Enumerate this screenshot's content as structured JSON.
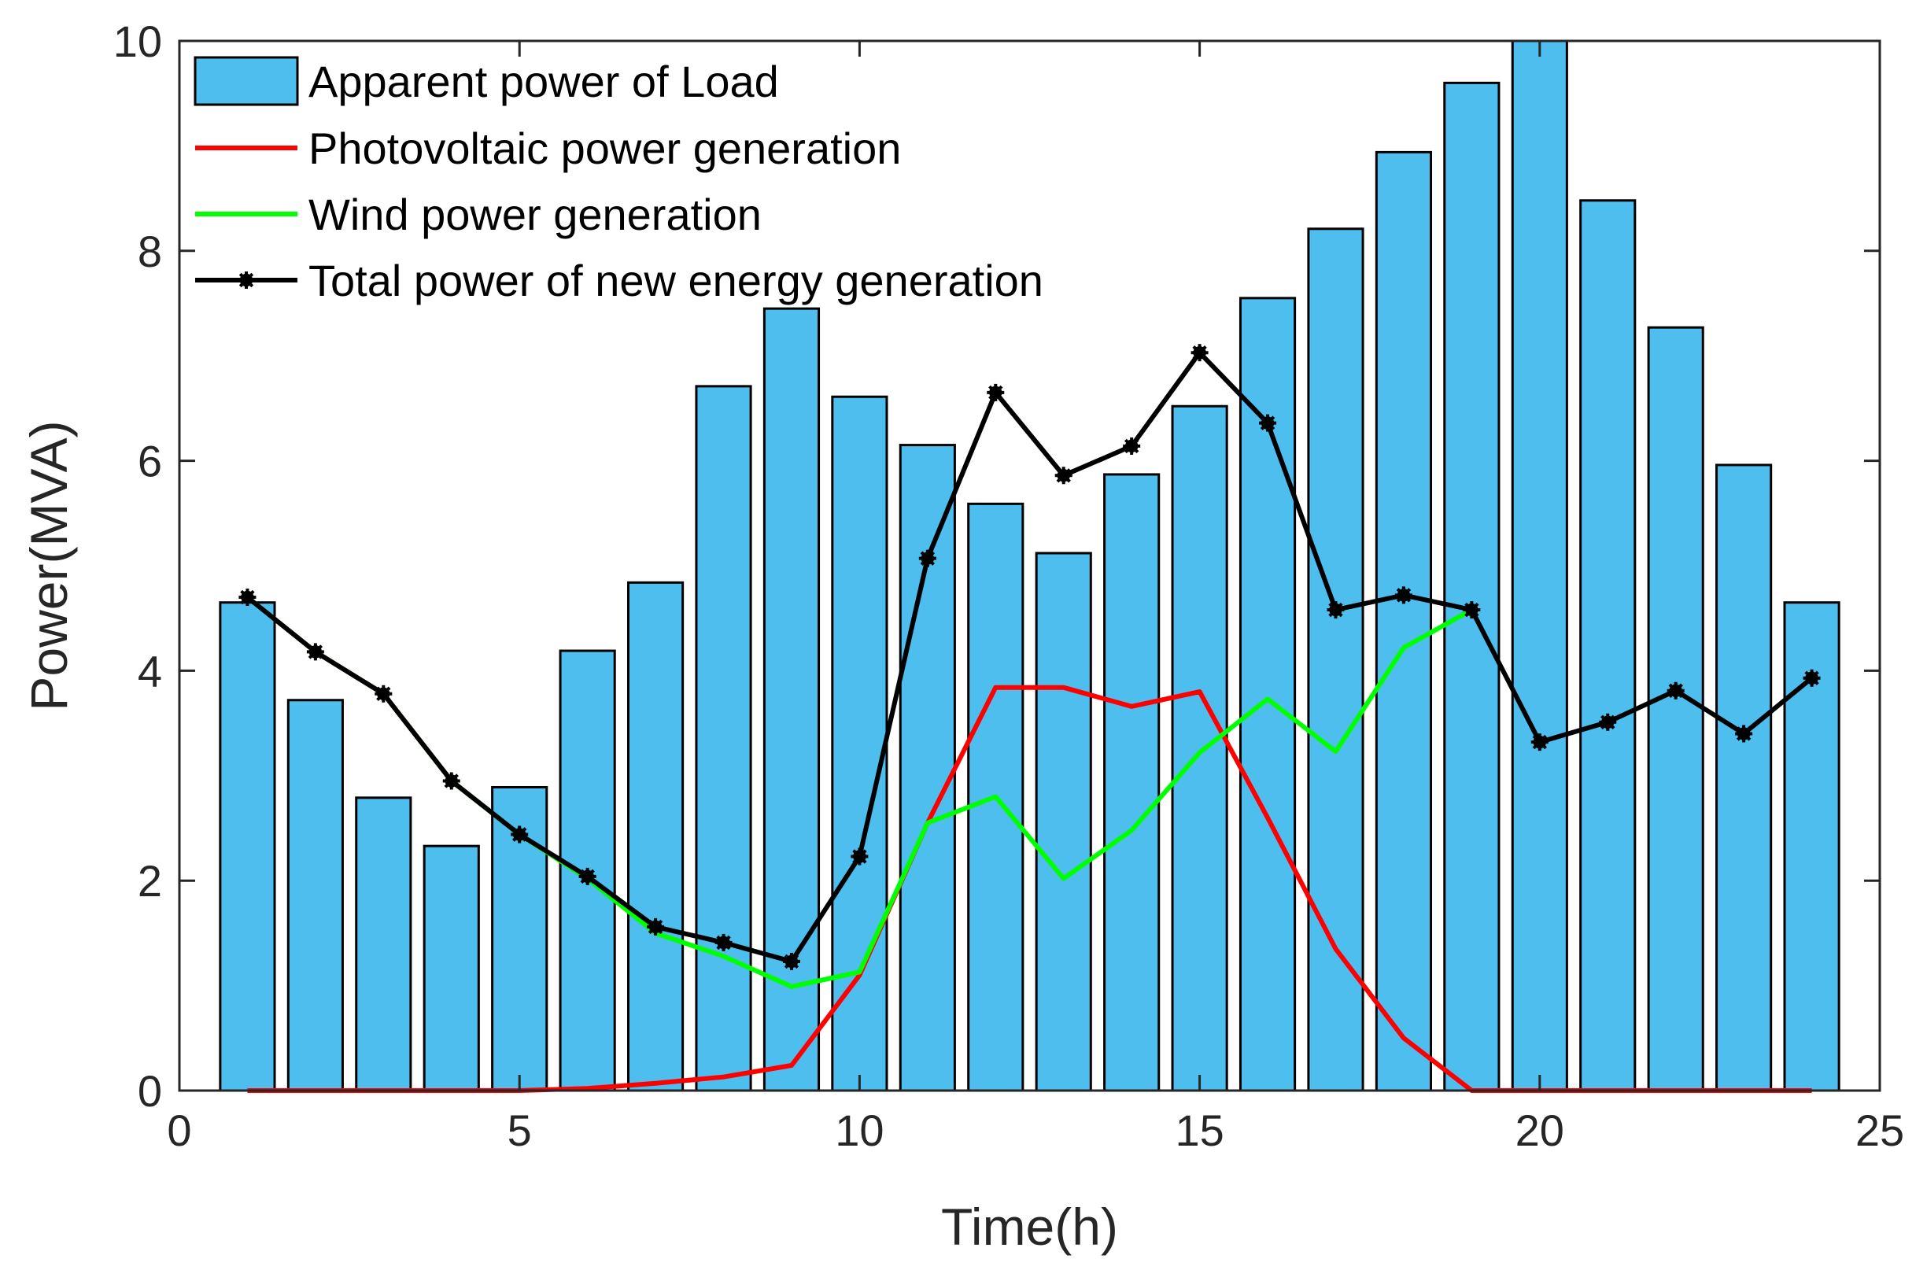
{
  "chart_data": {
    "type": "bar",
    "title": "",
    "xlabel": "Time(h)",
    "ylabel": "Power(MVA)",
    "xlim": [
      0,
      25
    ],
    "ylim": [
      0,
      10
    ],
    "xticks": [
      0,
      5,
      10,
      15,
      20,
      25
    ],
    "yticks": [
      0,
      2,
      4,
      6,
      8,
      10
    ],
    "grid": false,
    "legend_position": "top-left",
    "x": [
      1,
      2,
      3,
      4,
      5,
      6,
      7,
      8,
      9,
      10,
      11,
      12,
      13,
      14,
      15,
      16,
      17,
      18,
      19,
      20,
      21,
      22,
      23,
      24
    ],
    "series": [
      {
        "name": "Apparent power of Load",
        "type": "bar",
        "color": "#4DBEEE",
        "values": [
          4.65,
          3.72,
          2.79,
          2.33,
          2.89,
          4.19,
          4.84,
          6.71,
          7.45,
          6.61,
          6.15,
          5.59,
          5.12,
          5.87,
          6.52,
          7.55,
          8.21,
          8.94,
          9.6,
          10.0,
          8.48,
          7.27,
          5.96,
          4.65
        ]
      },
      {
        "name": "Photovoltaic power generation",
        "type": "line",
        "color": "#FF0000",
        "values": [
          0,
          0,
          0,
          0,
          0,
          0.02,
          0.07,
          0.13,
          0.24,
          1.1,
          2.55,
          3.84,
          3.84,
          3.66,
          3.8,
          2.6,
          1.35,
          0.5,
          0,
          0,
          0,
          0,
          0,
          0
        ]
      },
      {
        "name": "Wind power generation",
        "type": "line",
        "color": "#00FF00",
        "values": [
          4.7,
          4.18,
          3.78,
          2.95,
          2.44,
          2.02,
          1.5,
          1.28,
          0.99,
          1.13,
          2.55,
          2.8,
          2.02,
          2.48,
          3.22,
          3.73,
          3.23,
          4.22,
          4.58,
          null,
          null,
          null,
          null,
          null
        ]
      },
      {
        "name": "Total power of new energy generation",
        "type": "line",
        "marker": "asterisk",
        "color": "#000000",
        "values": [
          4.7,
          4.18,
          3.78,
          2.95,
          2.44,
          2.04,
          1.56,
          1.41,
          1.23,
          2.23,
          5.07,
          6.65,
          5.86,
          6.14,
          7.03,
          6.36,
          4.58,
          4.72,
          4.58,
          3.32,
          3.51,
          3.81,
          3.4,
          3.93
        ]
      }
    ]
  }
}
